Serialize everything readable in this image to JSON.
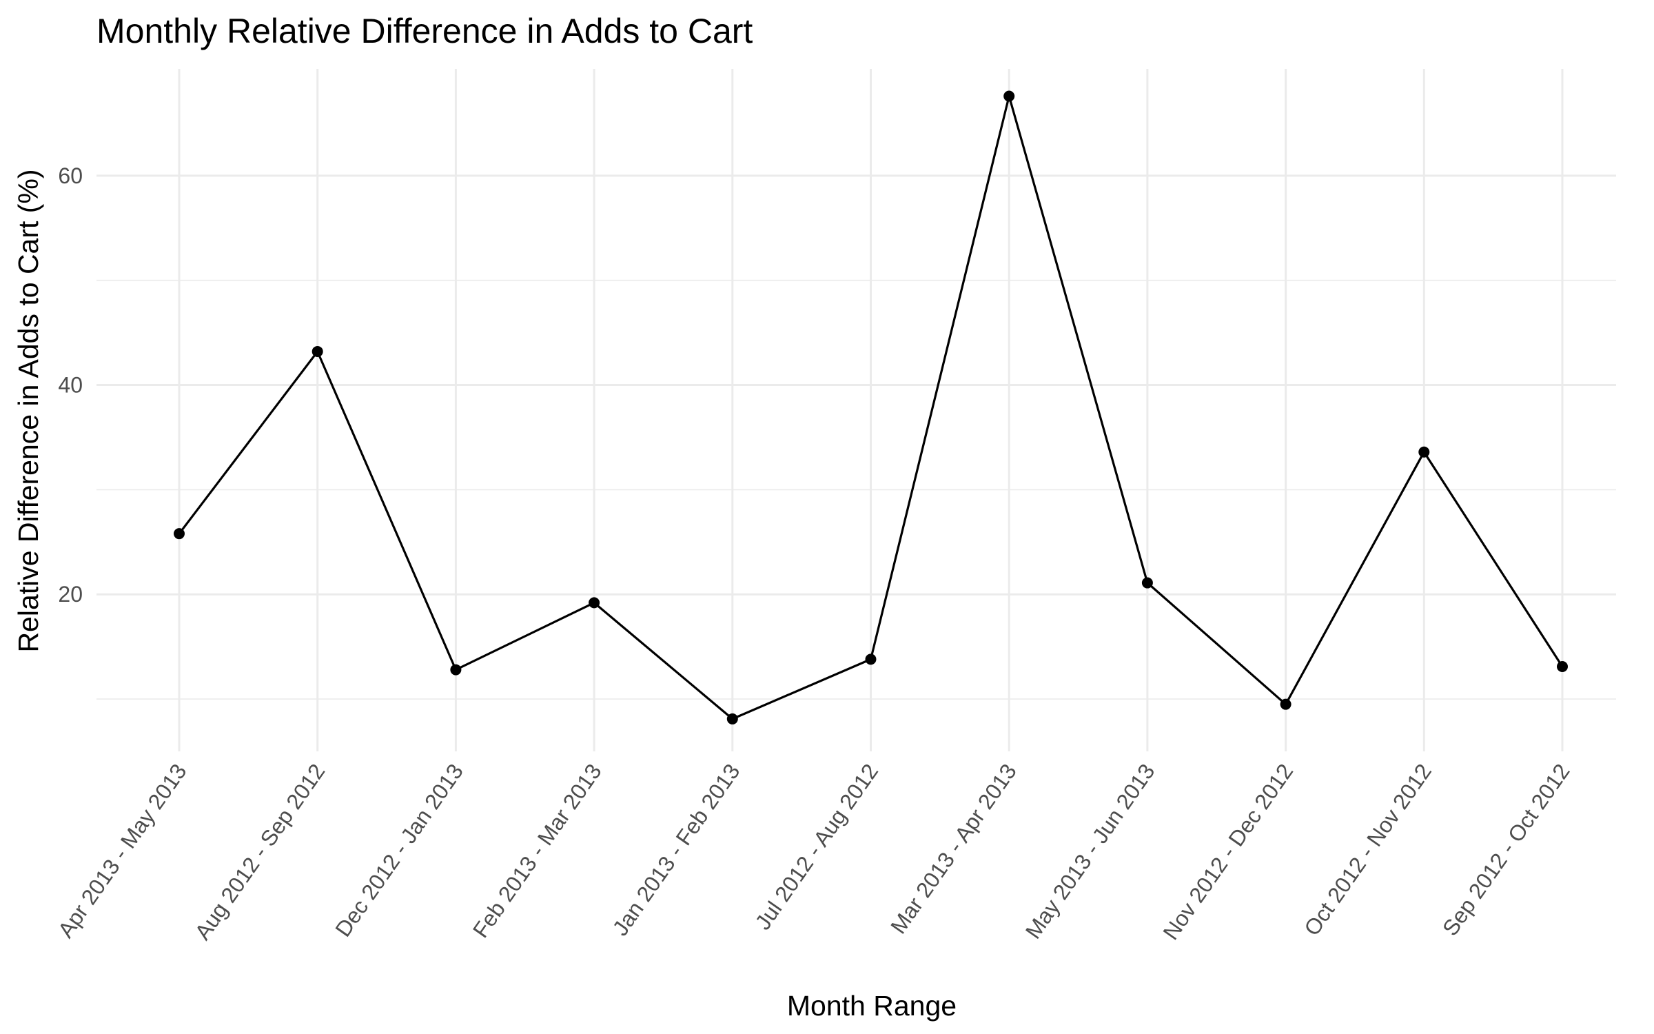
{
  "chart_data": {
    "type": "line",
    "title": "Monthly Relative Difference in Adds to Cart",
    "xlabel": "Month Range",
    "ylabel": "Relative Difference in Adds to Cart (%)",
    "categories": [
      "Apr 2013 - May 2013",
      "Aug 2012 - Sep 2012",
      "Dec 2012 - Jan 2013",
      "Feb 2013 - Mar 2013",
      "Jan 2013 - Feb 2013",
      "Jul 2012 - Aug 2012",
      "Mar 2013 - Apr 2013",
      "May 2013 - Jun 2013",
      "Nov 2012 - Dec 2012",
      "Oct 2012 - Nov 2012",
      "Sep 2012 - Oct 2012"
    ],
    "values": [
      25.8,
      43.2,
      12.8,
      19.2,
      8.1,
      13.8,
      67.6,
      21.1,
      9.5,
      33.6,
      13.1
    ],
    "ylim": [
      5.0,
      70.2
    ],
    "y_major_ticks": [
      20,
      40,
      60
    ],
    "y_minor_ticks": [
      10,
      30,
      50
    ],
    "grid": true,
    "legend": "none",
    "colors": {
      "line": "#000000",
      "points": "#000000",
      "grid": "#ebebeb",
      "background": "#ffffff"
    }
  }
}
